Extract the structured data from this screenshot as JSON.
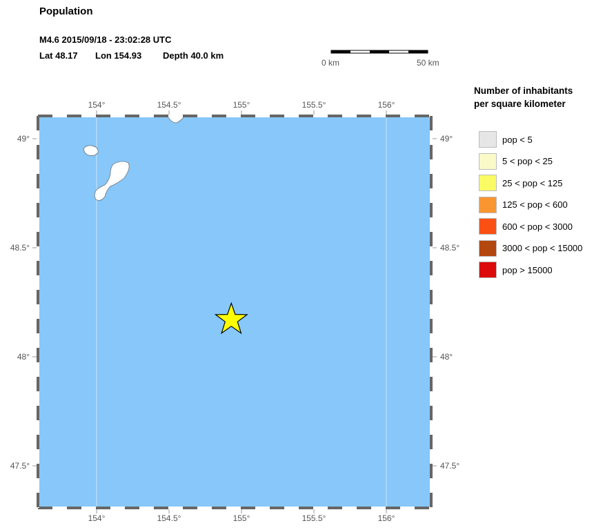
{
  "title": "Population",
  "event_line": "M4.6  2015/09/18 - 23:02:28 UTC",
  "location_line": {
    "lat": "Lat 48.17",
    "lon": "Lon 154.93",
    "depth": "Depth  40.0 km"
  },
  "scale_bar": {
    "start_label": "0 km",
    "end_label": "50 km"
  },
  "map": {
    "lon_ticks": [
      "154°",
      "154.5°",
      "155°",
      "155.5°",
      "156°"
    ],
    "lat_ticks": [
      "49°",
      "48.5°",
      "48°",
      "47.5°"
    ],
    "water_color": "#87c7f9",
    "land_color": "#ffffff",
    "epicenter": {
      "lat": 48.17,
      "lon": 154.93,
      "marker": "star-icon",
      "color": "#ffff00"
    }
  },
  "legend": {
    "title_line1": "Number of inhabitants",
    "title_line2": "per square kilometer",
    "items": [
      {
        "label": "pop < 5",
        "color": "#e6e6e6"
      },
      {
        "label": "5 < pop < 25",
        "color": "#fafac8"
      },
      {
        "label": "25 < pop < 125",
        "color": "#fafa64"
      },
      {
        "label": "125 < pop < 600",
        "color": "#fa9632"
      },
      {
        "label": "600 < pop < 3000",
        "color": "#fa5014"
      },
      {
        "label": "3000 < pop < 15000",
        "color": "#b4460f"
      },
      {
        "label": "pop > 15000",
        "color": "#dc0a0a"
      }
    ]
  }
}
